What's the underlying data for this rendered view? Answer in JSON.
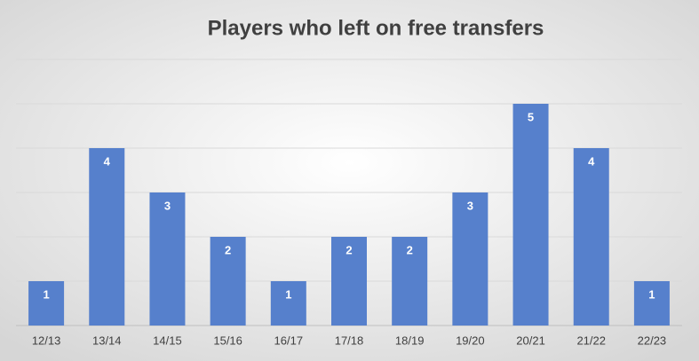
{
  "chart_data": {
    "type": "bar",
    "title": "Players who left on free transfers",
    "categories": [
      "12/13",
      "13/14",
      "14/15",
      "15/16",
      "16/17",
      "17/18",
      "18/19",
      "19/20",
      "20/21",
      "21/22",
      "22/23"
    ],
    "values": [
      1,
      4,
      3,
      2,
      1,
      2,
      2,
      3,
      5,
      4,
      1
    ],
    "color": "#5680cc",
    "ylim": [
      0,
      6
    ],
    "yticks": [
      0,
      1,
      2,
      3,
      4,
      5,
      6
    ],
    "grid": true,
    "ytick_labels": false,
    "data_labels": true
  }
}
